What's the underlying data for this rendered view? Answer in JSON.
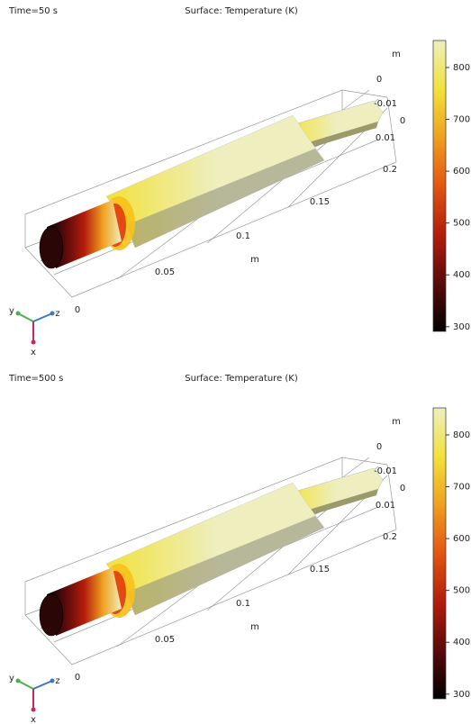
{
  "chart_data": [
    {
      "type": "surface",
      "time_label": "Time=50 s",
      "title": "Surface: Temperature (K)",
      "colorbar": {
        "lim": [
          291,
          852
        ],
        "ticks": [
          300,
          400,
          500,
          600,
          700,
          800
        ],
        "colors": [
          "#000000",
          "#5a0b0b",
          "#b41c0c",
          "#e35410",
          "#f0a020",
          "#f2e23a",
          "#eeeebe"
        ]
      },
      "length_ticks": [
        0,
        0.05,
        0.1,
        0.15,
        0.2
      ],
      "length_unit": "m",
      "height_ticks": [
        0
      ],
      "height_unit": "m",
      "depth_ticks": [
        -0.01,
        0,
        0.01
      ],
      "triad": [
        "y",
        "z",
        "x"
      ]
    },
    {
      "type": "surface",
      "time_label": "Time=500 s",
      "title": "Surface: Temperature (K)",
      "colorbar": {
        "lim": [
          291,
          852
        ],
        "ticks": [
          300,
          400,
          500,
          600,
          700,
          800
        ],
        "colors": [
          "#000000",
          "#5a0b0b",
          "#b41c0c",
          "#e35410",
          "#f0a020",
          "#f2e23a",
          "#eeeebe"
        ]
      },
      "length_ticks": [
        0,
        0.05,
        0.1,
        0.15,
        0.2
      ],
      "length_unit": "m",
      "height_ticks": [
        0
      ],
      "height_unit": "m",
      "depth_ticks": [
        -0.01,
        0,
        0.01
      ],
      "triad": [
        "y",
        "z",
        "x"
      ]
    }
  ]
}
